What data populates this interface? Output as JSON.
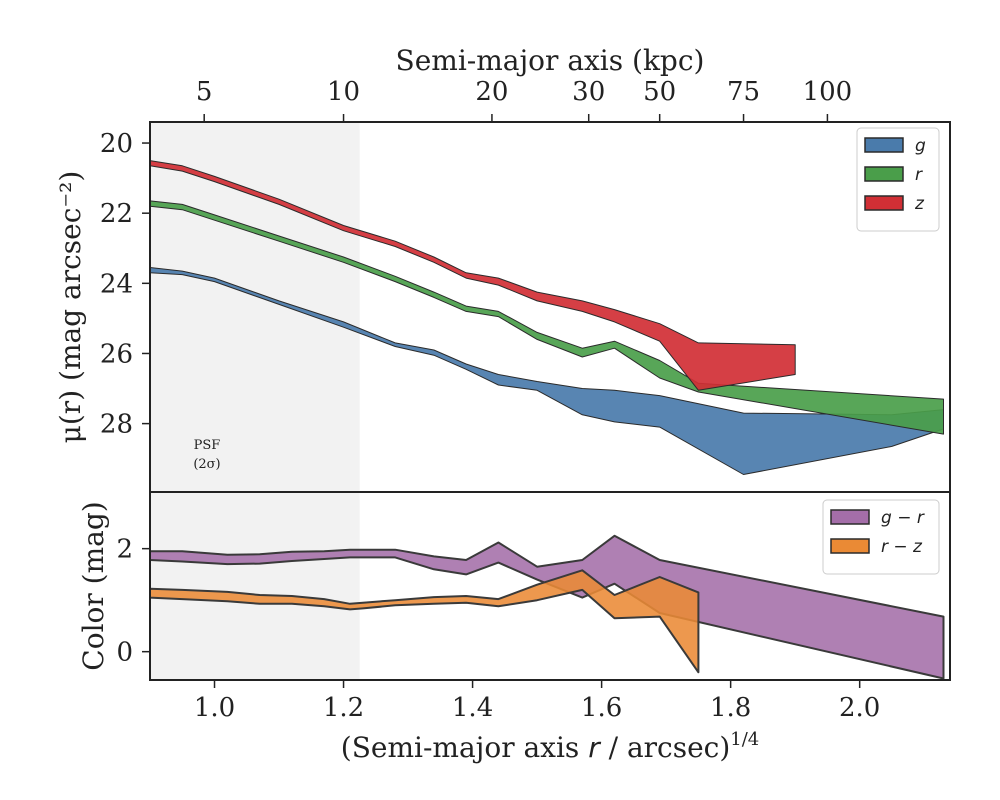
{
  "chart_data": [
    {
      "type": "area",
      "panel": "surface-brightness",
      "top_xlabel": "Semi-major axis (kpc)",
      "top_ticks": [
        {
          "label": "5",
          "x": 0.984
        },
        {
          "label": "10",
          "x": 1.2
        },
        {
          "label": "20",
          "x": 1.43
        },
        {
          "label": "30",
          "x": 1.58
        },
        {
          "label": "50",
          "x": 1.69
        },
        {
          "label": "75",
          "x": 1.82
        },
        {
          "label": "100",
          "x": 1.95
        }
      ],
      "ylabel": "μ(r) (mag arcsec⁻²)",
      "xlim": [
        0.9,
        2.14
      ],
      "ylim": [
        29.95,
        19.4
      ],
      "yticks": [
        "20",
        "22",
        "24",
        "26",
        "28"
      ],
      "shade": {
        "xmin": 0.9,
        "xmax": 1.225,
        "label_line1": "PSF",
        "label_line2": "(2σ)"
      },
      "legend_position": "upper right",
      "series": [
        {
          "name": "g",
          "color": "#4a7bab",
          "upper": [
            [
              0.9,
              23.55
            ],
            [
              0.95,
              23.65
            ],
            [
              1.0,
              23.85
            ],
            [
              1.1,
              24.5
            ],
            [
              1.2,
              25.1
            ],
            [
              1.28,
              25.7
            ],
            [
              1.34,
              25.9
            ],
            [
              1.39,
              26.3
            ],
            [
              1.44,
              26.6
            ],
            [
              1.5,
              26.8
            ],
            [
              1.57,
              27.0
            ],
            [
              1.62,
              27.05
            ],
            [
              1.69,
              27.2
            ],
            [
              1.82,
              27.7
            ],
            [
              2.05,
              27.75
            ],
            [
              2.13,
              27.6
            ]
          ],
          "lower": [
            [
              0.9,
              23.7
            ],
            [
              0.95,
              23.75
            ],
            [
              1.0,
              23.95
            ],
            [
              1.1,
              24.6
            ],
            [
              1.2,
              25.25
            ],
            [
              1.28,
              25.8
            ],
            [
              1.34,
              26.05
            ],
            [
              1.39,
              26.45
            ],
            [
              1.44,
              26.9
            ],
            [
              1.5,
              27.05
            ],
            [
              1.57,
              27.75
            ],
            [
              1.62,
              27.95
            ],
            [
              1.69,
              28.1
            ],
            [
              1.82,
              29.45
            ],
            [
              2.05,
              28.65
            ],
            [
              2.13,
              28.15
            ]
          ]
        },
        {
          "name": "r",
          "color": "#4a9e4a",
          "upper": [
            [
              0.9,
              21.65
            ],
            [
              0.95,
              21.75
            ],
            [
              1.0,
              22.05
            ],
            [
              1.1,
              22.65
            ],
            [
              1.2,
              23.25
            ],
            [
              1.28,
              23.8
            ],
            [
              1.34,
              24.25
            ],
            [
              1.39,
              24.65
            ],
            [
              1.44,
              24.8
            ],
            [
              1.5,
              25.4
            ],
            [
              1.57,
              25.85
            ],
            [
              1.62,
              25.65
            ],
            [
              1.69,
              26.2
            ],
            [
              1.75,
              26.85
            ],
            [
              2.13,
              27.3
            ]
          ],
          "lower": [
            [
              0.9,
              21.8
            ],
            [
              0.95,
              21.9
            ],
            [
              1.0,
              22.2
            ],
            [
              1.1,
              22.8
            ],
            [
              1.2,
              23.4
            ],
            [
              1.28,
              23.95
            ],
            [
              1.34,
              24.4
            ],
            [
              1.39,
              24.8
            ],
            [
              1.44,
              24.95
            ],
            [
              1.5,
              25.6
            ],
            [
              1.57,
              26.1
            ],
            [
              1.62,
              25.85
            ],
            [
              1.69,
              26.7
            ],
            [
              1.75,
              27.1
            ],
            [
              2.13,
              28.3
            ]
          ]
        },
        {
          "name": "z",
          "color": "#d12f35",
          "upper": [
            [
              0.9,
              20.5
            ],
            [
              0.95,
              20.65
            ],
            [
              1.0,
              20.95
            ],
            [
              1.1,
              21.6
            ],
            [
              1.2,
              22.35
            ],
            [
              1.28,
              22.8
            ],
            [
              1.34,
              23.25
            ],
            [
              1.39,
              23.7
            ],
            [
              1.44,
              23.85
            ],
            [
              1.5,
              24.25
            ],
            [
              1.57,
              24.5
            ],
            [
              1.62,
              24.75
            ],
            [
              1.69,
              25.15
            ],
            [
              1.75,
              25.7
            ],
            [
              1.9,
              25.75
            ]
          ],
          "lower": [
            [
              0.9,
              20.65
            ],
            [
              0.95,
              20.8
            ],
            [
              1.0,
              21.1
            ],
            [
              1.1,
              21.75
            ],
            [
              1.2,
              22.5
            ],
            [
              1.28,
              22.95
            ],
            [
              1.34,
              23.4
            ],
            [
              1.39,
              23.85
            ],
            [
              1.44,
              24.05
            ],
            [
              1.5,
              24.5
            ],
            [
              1.57,
              24.8
            ],
            [
              1.62,
              25.1
            ],
            [
              1.69,
              25.65
            ],
            [
              1.75,
              27.05
            ],
            [
              1.9,
              26.6
            ]
          ]
        }
      ]
    },
    {
      "type": "area",
      "panel": "color",
      "xlabel_main": "(Semi-major axis ",
      "xlabel_italic": "r",
      "xlabel_tail": " / arcsec)",
      "xlabel_sup": "1/4",
      "ylabel": "Color (mag)",
      "xlim": [
        0.9,
        2.14
      ],
      "ylim": [
        -0.55,
        3.1
      ],
      "xticks": [
        "1.0",
        "1.2",
        "1.4",
        "1.6",
        "1.8",
        "2.0"
      ],
      "yticks": [
        "0",
        "2"
      ],
      "legend_position": "upper right",
      "series": [
        {
          "name": "g − r",
          "color": "#a46ea9",
          "upper": [
            [
              0.9,
              1.95
            ],
            [
              0.95,
              1.95
            ],
            [
              1.02,
              1.88
            ],
            [
              1.07,
              1.89
            ],
            [
              1.12,
              1.94
            ],
            [
              1.17,
              1.95
            ],
            [
              1.21,
              1.98
            ],
            [
              1.23,
              1.98
            ],
            [
              1.28,
              1.98
            ],
            [
              1.34,
              1.85
            ],
            [
              1.39,
              1.78
            ],
            [
              1.44,
              2.12
            ],
            [
              1.5,
              1.65
            ],
            [
              1.57,
              1.78
            ],
            [
              1.62,
              2.25
            ],
            [
              1.69,
              1.78
            ],
            [
              2.13,
              0.68
            ]
          ],
          "lower": [
            [
              0.9,
              1.78
            ],
            [
              0.95,
              1.75
            ],
            [
              1.02,
              1.7
            ],
            [
              1.07,
              1.71
            ],
            [
              1.12,
              1.76
            ],
            [
              1.17,
              1.8
            ],
            [
              1.21,
              1.83
            ],
            [
              1.23,
              1.83
            ],
            [
              1.28,
              1.83
            ],
            [
              1.34,
              1.6
            ],
            [
              1.39,
              1.5
            ],
            [
              1.44,
              1.73
            ],
            [
              1.5,
              1.4
            ],
            [
              1.57,
              1.05
            ],
            [
              1.62,
              1.32
            ],
            [
              1.69,
              0.75
            ],
            [
              2.13,
              -0.52
            ]
          ]
        },
        {
          "name": "r − z",
          "color": "#ea8a35",
          "upper": [
            [
              0.9,
              1.22
            ],
            [
              0.95,
              1.2
            ],
            [
              1.02,
              1.16
            ],
            [
              1.07,
              1.1
            ],
            [
              1.12,
              1.08
            ],
            [
              1.17,
              1.02
            ],
            [
              1.21,
              0.93
            ],
            [
              1.23,
              0.95
            ],
            [
              1.28,
              1.0
            ],
            [
              1.34,
              1.06
            ],
            [
              1.39,
              1.08
            ],
            [
              1.44,
              1.02
            ],
            [
              1.5,
              1.3
            ],
            [
              1.57,
              1.58
            ],
            [
              1.62,
              1.1
            ],
            [
              1.69,
              1.45
            ],
            [
              1.75,
              1.15
            ]
          ],
          "lower": [
            [
              0.9,
              1.05
            ],
            [
              0.95,
              1.02
            ],
            [
              1.02,
              0.98
            ],
            [
              1.07,
              0.93
            ],
            [
              1.12,
              0.93
            ],
            [
              1.17,
              0.88
            ],
            [
              1.21,
              0.82
            ],
            [
              1.23,
              0.84
            ],
            [
              1.28,
              0.9
            ],
            [
              1.34,
              0.93
            ],
            [
              1.39,
              0.95
            ],
            [
              1.44,
              0.88
            ],
            [
              1.5,
              1.0
            ],
            [
              1.57,
              1.2
            ],
            [
              1.62,
              0.65
            ],
            [
              1.69,
              0.68
            ],
            [
              1.75,
              -0.4
            ]
          ]
        }
      ]
    }
  ]
}
